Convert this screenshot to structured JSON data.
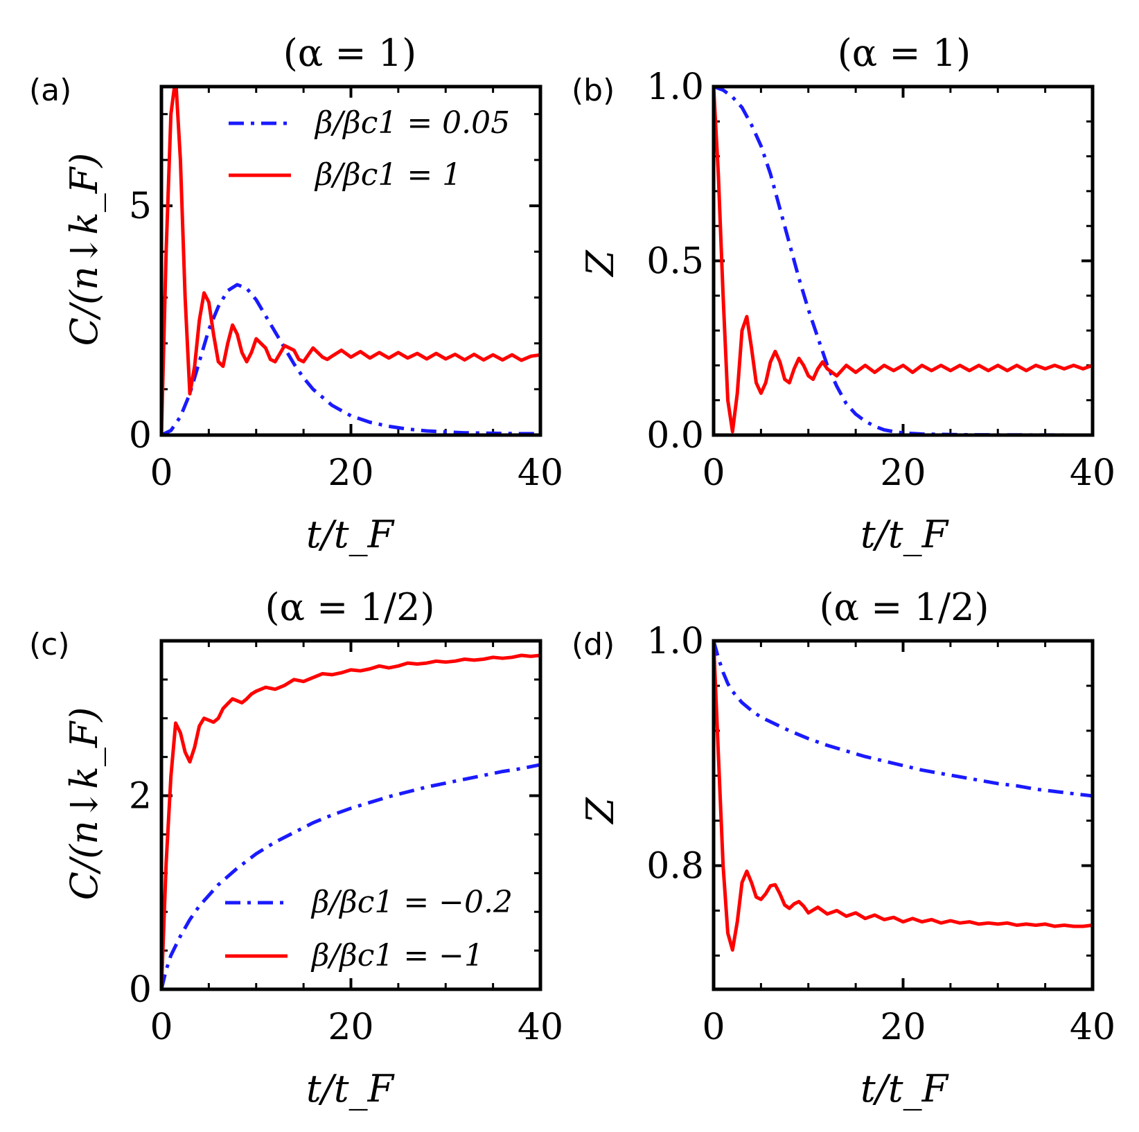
{
  "chart_data": [
    {
      "panel": "(a)",
      "type": "line",
      "title": "(α = 1)",
      "xlabel": "t/t_F",
      "ylabel": "C/(n↓k_F)",
      "xlim": [
        0,
        40
      ],
      "ylim": [
        0,
        7.6
      ],
      "xticks": [
        "0",
        "20",
        "40"
      ],
      "xticks_values": [
        0,
        20,
        40
      ],
      "yticks": [
        "0",
        "5"
      ],
      "yticks_values": [
        0,
        5
      ],
      "legend_position": "top-right",
      "series": [
        {
          "name": "β/βc1 = 0.05",
          "style": "dashdot",
          "color": "#1a1aff",
          "x": [
            0,
            1,
            2,
            3,
            4,
            5,
            6,
            7,
            8,
            9,
            10,
            11,
            12,
            13,
            14,
            15,
            16,
            18,
            20,
            22,
            24,
            26,
            28,
            30,
            32,
            35,
            38,
            40
          ],
          "y": [
            0,
            0.1,
            0.4,
            0.9,
            1.6,
            2.3,
            2.8,
            3.15,
            3.28,
            3.2,
            2.95,
            2.6,
            2.25,
            1.9,
            1.55,
            1.25,
            1.0,
            0.65,
            0.42,
            0.28,
            0.19,
            0.13,
            0.09,
            0.07,
            0.05,
            0.04,
            0.03,
            0.03
          ]
        },
        {
          "name": "β/βc1 = 1",
          "style": "solid",
          "color": "#ff0000",
          "x": [
            0,
            0.5,
            1,
            1.5,
            2,
            2.5,
            3,
            3.5,
            4,
            4.5,
            5,
            5.5,
            6,
            6.5,
            7,
            7.5,
            8,
            8.5,
            9,
            9.5,
            10,
            11,
            11.5,
            12,
            13,
            14,
            14.5,
            15,
            16,
            17,
            17.5,
            18,
            19,
            20,
            21,
            22,
            23,
            24,
            25,
            26,
            27,
            28,
            29,
            30,
            31,
            32,
            33,
            34,
            35,
            36,
            37,
            38,
            39,
            40
          ],
          "y": [
            0,
            4.0,
            7.0,
            7.8,
            6.0,
            3.0,
            0.9,
            1.5,
            2.5,
            3.1,
            2.9,
            2.2,
            1.6,
            1.5,
            2.0,
            2.4,
            2.2,
            1.8,
            1.6,
            1.8,
            2.1,
            1.9,
            1.65,
            1.6,
            1.95,
            1.85,
            1.65,
            1.6,
            1.9,
            1.7,
            1.65,
            1.72,
            1.85,
            1.7,
            1.82,
            1.68,
            1.8,
            1.68,
            1.8,
            1.68,
            1.78,
            1.66,
            1.78,
            1.66,
            1.76,
            1.64,
            1.76,
            1.64,
            1.75,
            1.64,
            1.75,
            1.63,
            1.72,
            1.75
          ]
        }
      ]
    },
    {
      "panel": "(b)",
      "type": "line",
      "title": "(α = 1)",
      "xlabel": "t/t_F",
      "ylabel": "Z",
      "xlim": [
        0,
        40
      ],
      "ylim": [
        0,
        1.0
      ],
      "xticks": [
        "0",
        "20",
        "40"
      ],
      "xticks_values": [
        0,
        20,
        40
      ],
      "yticks": [
        "0.0",
        "0.5",
        "1.0"
      ],
      "yticks_values": [
        0,
        0.5,
        1.0
      ],
      "series": [
        {
          "name": "β/βc1 = 0.05",
          "style": "dashdot",
          "color": "#1a1aff",
          "x": [
            0,
            1,
            2,
            3,
            4,
            5,
            6,
            7,
            8,
            9,
            10,
            11,
            12,
            13,
            14,
            15,
            16,
            17,
            18,
            19,
            20,
            22,
            24,
            26,
            30,
            35,
            40
          ],
          "y": [
            1.0,
            0.99,
            0.97,
            0.94,
            0.89,
            0.83,
            0.75,
            0.65,
            0.55,
            0.45,
            0.36,
            0.28,
            0.2,
            0.14,
            0.09,
            0.06,
            0.04,
            0.025,
            0.015,
            0.01,
            0.006,
            0.003,
            0.002,
            0.001,
            0.0005,
            0.0002,
            0.0
          ]
        },
        {
          "name": "β/βc1 = 1",
          "style": "solid",
          "color": "#ff0000",
          "x": [
            0,
            0.5,
            1,
            1.5,
            2,
            2.5,
            3,
            3.5,
            4,
            4.5,
            5,
            5.5,
            6,
            6.5,
            7,
            7.5,
            8,
            8.5,
            9,
            9.5,
            10,
            10.5,
            11,
            11.5,
            12,
            13,
            14,
            15,
            16,
            17,
            18,
            19,
            20,
            21,
            22,
            23,
            24,
            25,
            26,
            27,
            28,
            29,
            30,
            31,
            32,
            33,
            34,
            35,
            36,
            37,
            38,
            39,
            40
          ],
          "y": [
            1.0,
            0.75,
            0.4,
            0.1,
            0.01,
            0.12,
            0.3,
            0.34,
            0.25,
            0.15,
            0.12,
            0.15,
            0.21,
            0.24,
            0.21,
            0.16,
            0.15,
            0.19,
            0.22,
            0.2,
            0.17,
            0.16,
            0.19,
            0.21,
            0.19,
            0.17,
            0.2,
            0.18,
            0.2,
            0.18,
            0.2,
            0.185,
            0.2,
            0.18,
            0.2,
            0.185,
            0.2,
            0.185,
            0.2,
            0.185,
            0.2,
            0.185,
            0.2,
            0.185,
            0.2,
            0.185,
            0.2,
            0.19,
            0.2,
            0.19,
            0.2,
            0.19,
            0.2
          ]
        }
      ]
    },
    {
      "panel": "(c)",
      "type": "line",
      "title": "(α = 1/2)",
      "xlabel": "t/t_F",
      "ylabel": "C/(n↓k_F)",
      "xlim": [
        0,
        40
      ],
      "ylim": [
        0,
        3.6
      ],
      "xticks": [
        "0",
        "20",
        "40"
      ],
      "xticks_values": [
        0,
        20,
        40
      ],
      "yticks": [
        "0",
        "2"
      ],
      "yticks_values": [
        0,
        2
      ],
      "legend_position": "bottom-right",
      "series": [
        {
          "name": "β/βc1 = −0.2",
          "style": "dashdot",
          "color": "#1a1aff",
          "x": [
            0,
            0.5,
            1,
            2,
            3,
            4,
            6,
            8,
            10,
            12,
            14,
            16,
            18,
            20,
            22,
            24,
            26,
            28,
            30,
            32,
            34,
            36,
            38,
            40
          ],
          "y": [
            0,
            0.2,
            0.35,
            0.55,
            0.72,
            0.86,
            1.08,
            1.25,
            1.4,
            1.52,
            1.62,
            1.72,
            1.8,
            1.87,
            1.93,
            1.99,
            2.04,
            2.09,
            2.13,
            2.17,
            2.21,
            2.25,
            2.28,
            2.32
          ]
        },
        {
          "name": "β/βc1 = −1",
          "style": "solid",
          "color": "#ff0000",
          "x": [
            0,
            0.5,
            1,
            1.5,
            2,
            2.5,
            3,
            3.5,
            4,
            4.5,
            5,
            5.5,
            6,
            6.5,
            7,
            7.5,
            8,
            8.5,
            9,
            9.5,
            10,
            11,
            12,
            13,
            14,
            15,
            16,
            17,
            18,
            19,
            20,
            21,
            22,
            23,
            24,
            25,
            26,
            27,
            28,
            29,
            30,
            31,
            32,
            33,
            34,
            35,
            36,
            37,
            38,
            39,
            40
          ],
          "y": [
            0,
            1.3,
            2.2,
            2.75,
            2.65,
            2.45,
            2.35,
            2.5,
            2.72,
            2.8,
            2.78,
            2.76,
            2.8,
            2.9,
            2.95,
            3.0,
            2.98,
            2.96,
            3.0,
            3.05,
            3.08,
            3.12,
            3.1,
            3.14,
            3.2,
            3.18,
            3.22,
            3.26,
            3.25,
            3.27,
            3.3,
            3.29,
            3.31,
            3.34,
            3.32,
            3.34,
            3.37,
            3.36,
            3.37,
            3.39,
            3.38,
            3.39,
            3.41,
            3.4,
            3.41,
            3.43,
            3.42,
            3.43,
            3.45,
            3.44,
            3.45
          ]
        }
      ]
    },
    {
      "panel": "(d)",
      "type": "line",
      "title": "(α = 1/2)",
      "xlabel": "t/t_F",
      "ylabel": "Z",
      "xlim": [
        0,
        40
      ],
      "ylim": [
        0.69,
        1.0
      ],
      "xticks": [
        "0",
        "20",
        "40"
      ],
      "xticks_values": [
        0,
        20,
        40
      ],
      "yticks": [
        "0.8",
        "1.0"
      ],
      "yticks_values": [
        0.8,
        1.0
      ],
      "series": [
        {
          "name": "β/βc1 = −0.2",
          "style": "dashdot",
          "color": "#1a1aff",
          "x": [
            0,
            0.5,
            1,
            1.5,
            2,
            3,
            4,
            5,
            6,
            8,
            10,
            12,
            14,
            16,
            18,
            20,
            22,
            24,
            26,
            28,
            30,
            32,
            34,
            36,
            38,
            40
          ],
          "y": [
            1.0,
            0.985,
            0.972,
            0.962,
            0.955,
            0.945,
            0.938,
            0.932,
            0.928,
            0.92,
            0.913,
            0.907,
            0.902,
            0.897,
            0.893,
            0.889,
            0.885,
            0.882,
            0.879,
            0.876,
            0.873,
            0.871,
            0.868,
            0.866,
            0.864,
            0.862
          ]
        },
        {
          "name": "β/βc1 = −1",
          "style": "solid",
          "color": "#ff0000",
          "x": [
            0,
            0.5,
            1,
            1.5,
            2,
            2.5,
            3,
            3.5,
            4,
            4.5,
            5,
            5.5,
            6,
            6.5,
            7,
            7.5,
            8,
            8.5,
            9,
            9.5,
            10,
            11,
            12,
            13,
            14,
            15,
            16,
            17,
            18,
            19,
            20,
            21,
            22,
            23,
            24,
            25,
            26,
            27,
            28,
            29,
            30,
            31,
            32,
            33,
            34,
            35,
            36,
            37,
            38,
            39,
            40
          ],
          "y": [
            1.0,
            0.9,
            0.8,
            0.74,
            0.725,
            0.75,
            0.785,
            0.795,
            0.785,
            0.772,
            0.77,
            0.775,
            0.782,
            0.783,
            0.775,
            0.765,
            0.762,
            0.766,
            0.768,
            0.764,
            0.758,
            0.763,
            0.757,
            0.76,
            0.755,
            0.758,
            0.753,
            0.756,
            0.752,
            0.754,
            0.75,
            0.753,
            0.75,
            0.752,
            0.749,
            0.751,
            0.749,
            0.75,
            0.748,
            0.749,
            0.748,
            0.749,
            0.747,
            0.748,
            0.747,
            0.748,
            0.746,
            0.747,
            0.746,
            0.746,
            0.747
          ]
        }
      ]
    }
  ]
}
